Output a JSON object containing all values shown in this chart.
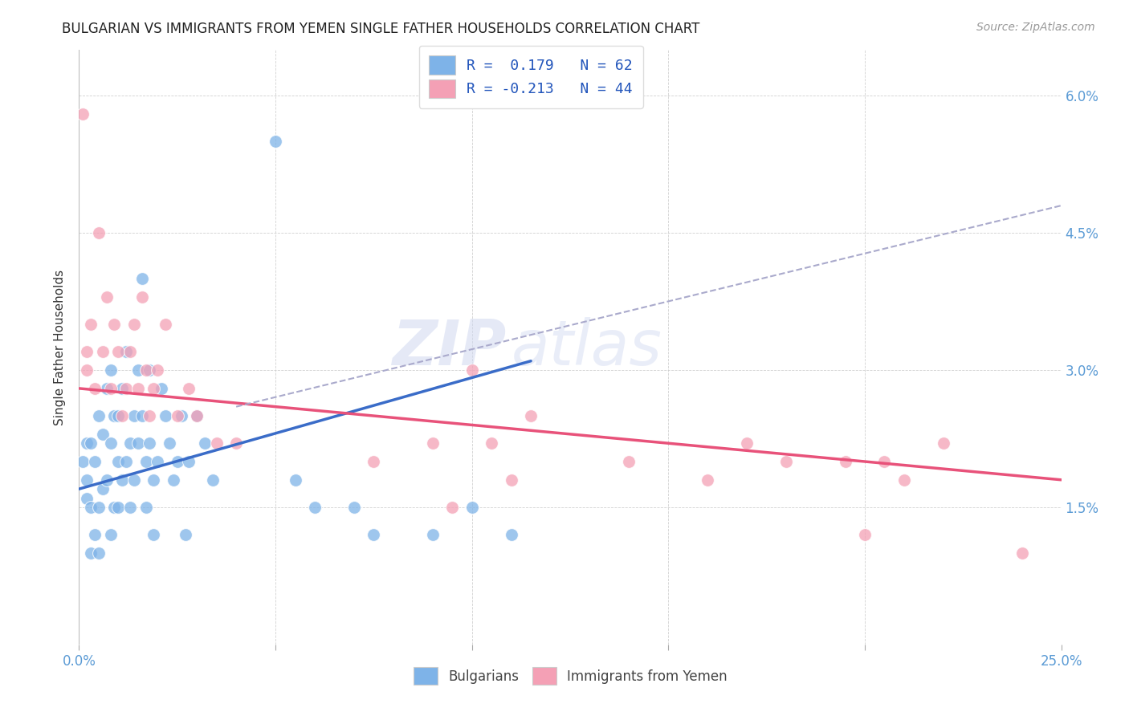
{
  "title": "BULGARIAN VS IMMIGRANTS FROM YEMEN SINGLE FATHER HOUSEHOLDS CORRELATION CHART",
  "source": "Source: ZipAtlas.com",
  "ylabel": "Single Father Households",
  "xlim": [
    0.0,
    0.25
  ],
  "ylim": [
    0.0,
    0.065
  ],
  "ytick_vals": [
    0.0,
    0.015,
    0.03,
    0.045,
    0.06
  ],
  "ytick_labels": [
    "",
    "1.5%",
    "3.0%",
    "4.5%",
    "6.0%"
  ],
  "xtick_vals": [
    0.0,
    0.05,
    0.1,
    0.15,
    0.2,
    0.25
  ],
  "xtick_labels": [
    "0.0%",
    "",
    "",
    "",
    "",
    "25.0%"
  ],
  "blue_color": "#7EB3E8",
  "pink_color": "#F4A0B5",
  "blue_line_color": "#3A6CC8",
  "pink_line_color": "#E8527A",
  "dashed_line_color": "#AAAACC",
  "blue_line": [
    0.0,
    0.017,
    0.115,
    0.031
  ],
  "pink_line": [
    0.0,
    0.028,
    0.25,
    0.018
  ],
  "dash_line": [
    0.04,
    0.026,
    0.25,
    0.048
  ],
  "watermark_zip": "ZIP",
  "watermark_atlas": "atlas",
  "legend_r1_label": "R =  0.179   N = 62",
  "legend_r2_label": "R = -0.213   N = 44",
  "blue_pts_x": [
    0.001,
    0.002,
    0.002,
    0.002,
    0.003,
    0.003,
    0.003,
    0.004,
    0.004,
    0.005,
    0.005,
    0.005,
    0.006,
    0.006,
    0.007,
    0.007,
    0.008,
    0.008,
    0.008,
    0.009,
    0.009,
    0.01,
    0.01,
    0.01,
    0.011,
    0.011,
    0.012,
    0.012,
    0.013,
    0.013,
    0.014,
    0.014,
    0.015,
    0.015,
    0.016,
    0.016,
    0.017,
    0.017,
    0.018,
    0.018,
    0.019,
    0.019,
    0.02,
    0.021,
    0.022,
    0.023,
    0.024,
    0.025,
    0.026,
    0.027,
    0.028,
    0.03,
    0.032,
    0.034,
    0.05,
    0.055,
    0.06,
    0.07,
    0.075,
    0.09,
    0.1,
    0.11
  ],
  "blue_pts_y": [
    0.02,
    0.018,
    0.022,
    0.016,
    0.022,
    0.015,
    0.01,
    0.02,
    0.012,
    0.025,
    0.015,
    0.01,
    0.023,
    0.017,
    0.028,
    0.018,
    0.03,
    0.022,
    0.012,
    0.015,
    0.025,
    0.02,
    0.015,
    0.025,
    0.028,
    0.018,
    0.032,
    0.02,
    0.022,
    0.015,
    0.025,
    0.018,
    0.03,
    0.022,
    0.04,
    0.025,
    0.02,
    0.015,
    0.03,
    0.022,
    0.012,
    0.018,
    0.02,
    0.028,
    0.025,
    0.022,
    0.018,
    0.02,
    0.025,
    0.012,
    0.02,
    0.025,
    0.022,
    0.018,
    0.055,
    0.018,
    0.015,
    0.015,
    0.012,
    0.012,
    0.015,
    0.012
  ],
  "pink_pts_x": [
    0.001,
    0.002,
    0.002,
    0.003,
    0.004,
    0.005,
    0.006,
    0.007,
    0.008,
    0.009,
    0.01,
    0.011,
    0.012,
    0.013,
    0.014,
    0.015,
    0.016,
    0.017,
    0.018,
    0.019,
    0.02,
    0.022,
    0.025,
    0.028,
    0.03,
    0.035,
    0.04,
    0.075,
    0.09,
    0.095,
    0.1,
    0.105,
    0.11,
    0.115,
    0.14,
    0.16,
    0.17,
    0.18,
    0.195,
    0.2,
    0.205,
    0.21,
    0.22,
    0.24
  ],
  "pink_pts_y": [
    0.058,
    0.032,
    0.03,
    0.035,
    0.028,
    0.045,
    0.032,
    0.038,
    0.028,
    0.035,
    0.032,
    0.025,
    0.028,
    0.032,
    0.035,
    0.028,
    0.038,
    0.03,
    0.025,
    0.028,
    0.03,
    0.035,
    0.025,
    0.028,
    0.025,
    0.022,
    0.022,
    0.02,
    0.022,
    0.015,
    0.03,
    0.022,
    0.018,
    0.025,
    0.02,
    0.018,
    0.022,
    0.02,
    0.02,
    0.012,
    0.02,
    0.018,
    0.022,
    0.01
  ]
}
